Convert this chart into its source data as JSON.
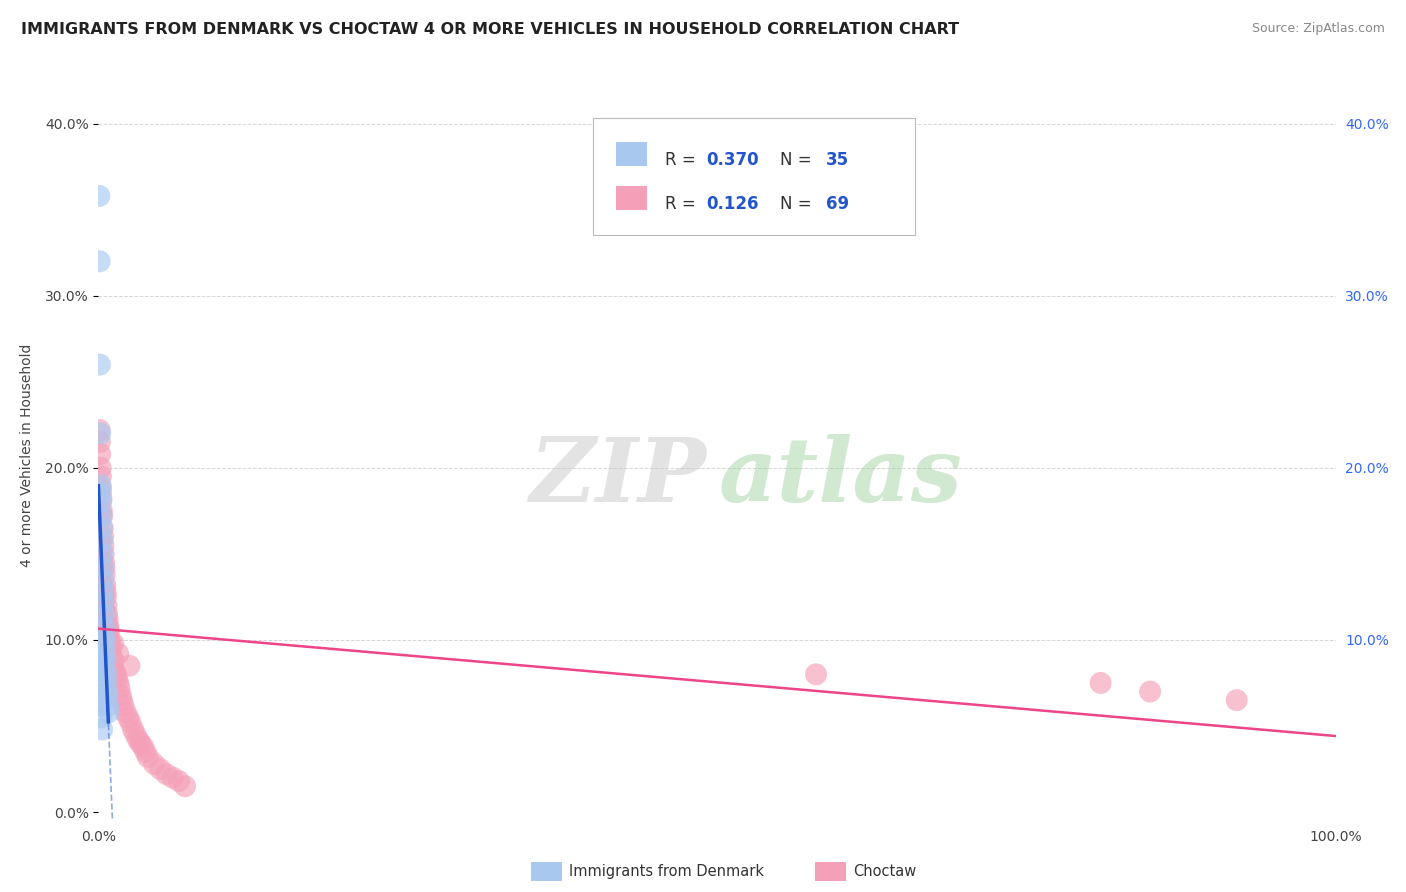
{
  "title": "IMMIGRANTS FROM DENMARK VS CHOCTAW 4 OR MORE VEHICLES IN HOUSEHOLD CORRELATION CHART",
  "source": "Source: ZipAtlas.com",
  "ylabel": "4 or more Vehicles in Household",
  "xlim": [
    0.0,
    1.0
  ],
  "ylim": [
    -0.005,
    0.42
  ],
  "yticks": [
    0.0,
    0.1,
    0.2,
    0.3,
    0.4
  ],
  "ytick_labels_left": [
    "0.0%",
    "10.0%",
    "20.0%",
    "30.0%",
    "40.0%"
  ],
  "ytick_labels_right": [
    "",
    "10.0%",
    "20.0%",
    "30.0%",
    "40.0%"
  ],
  "color_blue": "#A8C8F0",
  "color_pink": "#F4A0B8",
  "line_blue": "#2255CC",
  "line_pink": "#EE4488",
  "grid_color": "#CCCCCC",
  "denmark_x": [
    0.0008,
    0.001,
    0.0012,
    0.0015,
    0.0018,
    0.002,
    0.0022,
    0.0025,
    0.0028,
    0.003,
    0.0032,
    0.0035,
    0.0038,
    0.004,
    0.0042,
    0.0045,
    0.0048,
    0.005,
    0.0052,
    0.0055,
    0.0058,
    0.006,
    0.0065,
    0.007,
    0.0075,
    0.008,
    0.0085,
    0.0008,
    0.001,
    0.0012,
    0.0015,
    0.0018,
    0.002,
    0.0025,
    0.003
  ],
  "denmark_y": [
    0.358,
    0.32,
    0.26,
    0.22,
    0.19,
    0.185,
    0.18,
    0.172,
    0.165,
    0.158,
    0.15,
    0.142,
    0.135,
    0.128,
    0.122,
    0.115,
    0.108,
    0.102,
    0.098,
    0.092,
    0.088,
    0.082,
    0.078,
    0.072,
    0.068,
    0.062,
    0.058,
    0.095,
    0.088,
    0.082,
    0.075,
    0.068,
    0.062,
    0.055,
    0.048
  ],
  "choctaw_x": [
    0.001,
    0.0012,
    0.0015,
    0.0018,
    0.002,
    0.0022,
    0.0025,
    0.0028,
    0.003,
    0.0035,
    0.0038,
    0.004,
    0.0042,
    0.0045,
    0.0048,
    0.005,
    0.0055,
    0.0058,
    0.006,
    0.0065,
    0.007,
    0.0075,
    0.008,
    0.0085,
    0.009,
    0.0095,
    0.01,
    0.011,
    0.012,
    0.013,
    0.014,
    0.015,
    0.016,
    0.017,
    0.018,
    0.019,
    0.02,
    0.022,
    0.024,
    0.026,
    0.028,
    0.03,
    0.032,
    0.034,
    0.036,
    0.038,
    0.04,
    0.045,
    0.05,
    0.055,
    0.06,
    0.065,
    0.07,
    0.0012,
    0.0018,
    0.0022,
    0.0028,
    0.0035,
    0.0042,
    0.005,
    0.008,
    0.012,
    0.016,
    0.025,
    0.58,
    0.81,
    0.85,
    0.92
  ],
  "choctaw_y": [
    0.222,
    0.215,
    0.208,
    0.2,
    0.195,
    0.188,
    0.182,
    0.175,
    0.172,
    0.165,
    0.16,
    0.155,
    0.15,
    0.145,
    0.142,
    0.138,
    0.132,
    0.128,
    0.125,
    0.12,
    0.115,
    0.112,
    0.108,
    0.105,
    0.1,
    0.098,
    0.095,
    0.09,
    0.088,
    0.082,
    0.08,
    0.078,
    0.075,
    0.072,
    0.068,
    0.065,
    0.062,
    0.058,
    0.055,
    0.052,
    0.048,
    0.045,
    0.042,
    0.04,
    0.038,
    0.035,
    0.032,
    0.028,
    0.025,
    0.022,
    0.02,
    0.018,
    0.015,
    0.158,
    0.148,
    0.14,
    0.132,
    0.125,
    0.118,
    0.112,
    0.105,
    0.098,
    0.092,
    0.085,
    0.08,
    0.075,
    0.07,
    0.065
  ]
}
